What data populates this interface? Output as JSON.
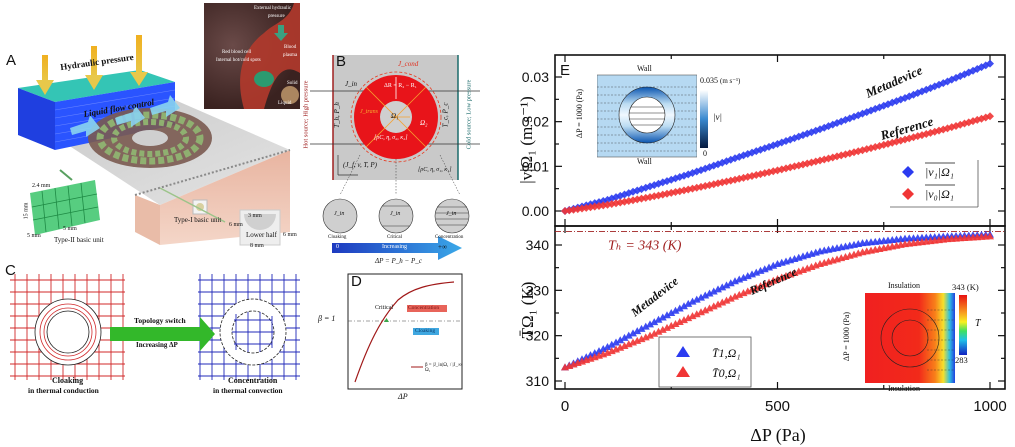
{
  "panels": {
    "A": {
      "letter": "A",
      "labels": {
        "hydraulic_pressure": "Hydraulic pressure",
        "liquid_flow_control": "Liquid flow control",
        "type_ii": "Type-II basic unit",
        "type_i": "Type-I basic unit",
        "lower_half": "Lower half",
        "dim_2_4mm": "2.4 mm",
        "dim_5mm_a": "5 mm",
        "dim_5mm_b": "5 mm",
        "dim_15mm": "15 mm",
        "dim_6mm_a": "6 mm",
        "dim_6mm_b": "6 mm",
        "dim_3mm": "3 mm",
        "dim_8mm": "8 mm"
      },
      "inset": {
        "external": "External hydraulic",
        "pressure": "pressure",
        "blood": "Blood",
        "plasma": "plasma",
        "rbc": "Red blood cell",
        "spot": "Internal hot/cold spots",
        "solid": "Solid",
        "liquid": "Liquid"
      }
    },
    "B": {
      "letter": "B",
      "j_cond": "J_cond",
      "j_in": "J_in",
      "j_trans": "J_trans",
      "delta_r": "ΔR = R₂ − R₁",
      "omega1": "Ω₁",
      "omega2": "Ω₂",
      "props_ring": "[ρC, η, σ₂, κ₂]",
      "props_bg": "[ρC, η, σ₁, κ₁]",
      "fields": "(J_f, v, T, P)",
      "hot_side": "Hot source; High pressure",
      "cold_side": "Cold source; Low pressure",
      "th_ph": "T_h, P_h",
      "tc_pc": "T_c, P_c",
      "circles": [
        {
          "label": "Cloaking",
          "j": "J_in"
        },
        {
          "label": "Critical",
          "j": "J_in"
        },
        {
          "label": "Concentration",
          "j": "J_in"
        }
      ],
      "arrow_start": "0",
      "arrow_mid": "Increasing",
      "arrow_end": "+∞",
      "formula": "ΔP = P_h − P_c"
    },
    "C": {
      "letter": "C",
      "left_title": "Cloaking",
      "left_sub": "in thermal conduction",
      "right_title": "Concentration",
      "right_sub": "in thermal convection",
      "arrow_top": "Topology switch",
      "arrow_bottom": "Increasing ΔP"
    },
    "D": {
      "letter": "D",
      "beta_line": "β = 1",
      "critical": "Critical",
      "concentration": "Concentration",
      "cloaking": "Cloaking",
      "legend": "β = |J_in|Ω₁ / |J_∞|Ω₁",
      "xlabel": "ΔP",
      "colors": {
        "curve": "#a01818",
        "concentration_bg": "#e8645a",
        "cloaking_bg": "#3fa7e0",
        "critical_marker": "#3aa64a"
      }
    },
    "E_top_inset": {
      "wall_top": "Wall",
      "wall_bottom": "Wall",
      "dp_label": "ΔP = 1000 (Pa)",
      "scale_max": "0.035",
      "scale_unit": "(m s⁻¹)",
      "scale_min": "0",
      "scale_var": "|v|"
    },
    "E_bottom_inset": {
      "top": "Insulation",
      "bottom": "Insulation",
      "dp_label": "ΔP = 1000 (Pa)",
      "scale_max": "343 (K)",
      "scale_min": "283",
      "scale_var": "T"
    }
  },
  "chart_data": [
    {
      "type": "scatter",
      "panel": "E-top",
      "letter": "E",
      "title": "",
      "xlabel": "ΔP (Pa)",
      "ylabel": "|v|Ω₁ (m s⁻¹)",
      "xlim": [
        0,
        1000
      ],
      "ylim": [
        -0.002,
        0.035
      ],
      "xticks": [
        0,
        500,
        1000
      ],
      "yticks": [
        0.0,
        0.01,
        0.02,
        0.03
      ],
      "ytick_labels": [
        "0.00",
        "0.01",
        "0.02",
        "0.03"
      ],
      "grid": false,
      "legend_position": "bottom-right",
      "annotations": [
        "Metadevice",
        "Reference"
      ],
      "series": [
        {
          "name": "|v₁|Ω₁",
          "annotation": "Metadevice",
          "marker": "diamond",
          "color": "#2b3bf0",
          "x": [
            0,
            100,
            200,
            300,
            400,
            500,
            600,
            700,
            800,
            900,
            1000
          ],
          "values": [
            0.0,
            0.0025,
            0.0055,
            0.0085,
            0.0118,
            0.015,
            0.0183,
            0.0218,
            0.0253,
            0.029,
            0.033
          ]
        },
        {
          "name": "|v₀|Ω₁",
          "annotation": "Reference",
          "marker": "diamond",
          "color": "#f03535",
          "x": [
            0,
            100,
            200,
            300,
            400,
            500,
            600,
            700,
            800,
            900,
            1000
          ],
          "values": [
            0.0,
            0.0014,
            0.0031,
            0.005,
            0.007,
            0.0091,
            0.0113,
            0.0136,
            0.016,
            0.0185,
            0.0212
          ]
        }
      ]
    },
    {
      "type": "scatter",
      "panel": "E-bottom",
      "title": "",
      "xlabel": "ΔP (Pa)",
      "ylabel": "T̄Ω₁ (K)",
      "xlim": [
        0,
        1000
      ],
      "ylim": [
        308,
        345
      ],
      "xticks": [
        0,
        500,
        1000
      ],
      "yticks": [
        310,
        320,
        330,
        340
      ],
      "grid": false,
      "legend_position": "bottom-left",
      "reference_line": {
        "label": "T_h = 343 (K)",
        "value": 343,
        "color": "#a02020",
        "style": "dash-dot"
      },
      "annotations": [
        "Metadevice",
        "Reference"
      ],
      "series": [
        {
          "name": "T̄1,Ω₁",
          "annotation": "Metadevice",
          "marker": "triangle",
          "color": "#2b3bf0",
          "x": [
            0,
            100,
            200,
            300,
            400,
            500,
            600,
            700,
            800,
            900,
            1000
          ],
          "values": [
            313.0,
            317.5,
            322.5,
            327.5,
            332.0,
            335.8,
            338.6,
            340.4,
            341.4,
            341.9,
            342.3
          ]
        },
        {
          "name": "T̄0,Ω₁",
          "annotation": "Reference",
          "marker": "triangle",
          "color": "#f03535",
          "x": [
            0,
            100,
            200,
            300,
            400,
            500,
            600,
            700,
            800,
            900,
            1000
          ],
          "values": [
            313.0,
            316.2,
            320.0,
            324.3,
            328.6,
            332.5,
            335.8,
            338.4,
            340.2,
            341.3,
            341.9
          ]
        }
      ]
    }
  ]
}
